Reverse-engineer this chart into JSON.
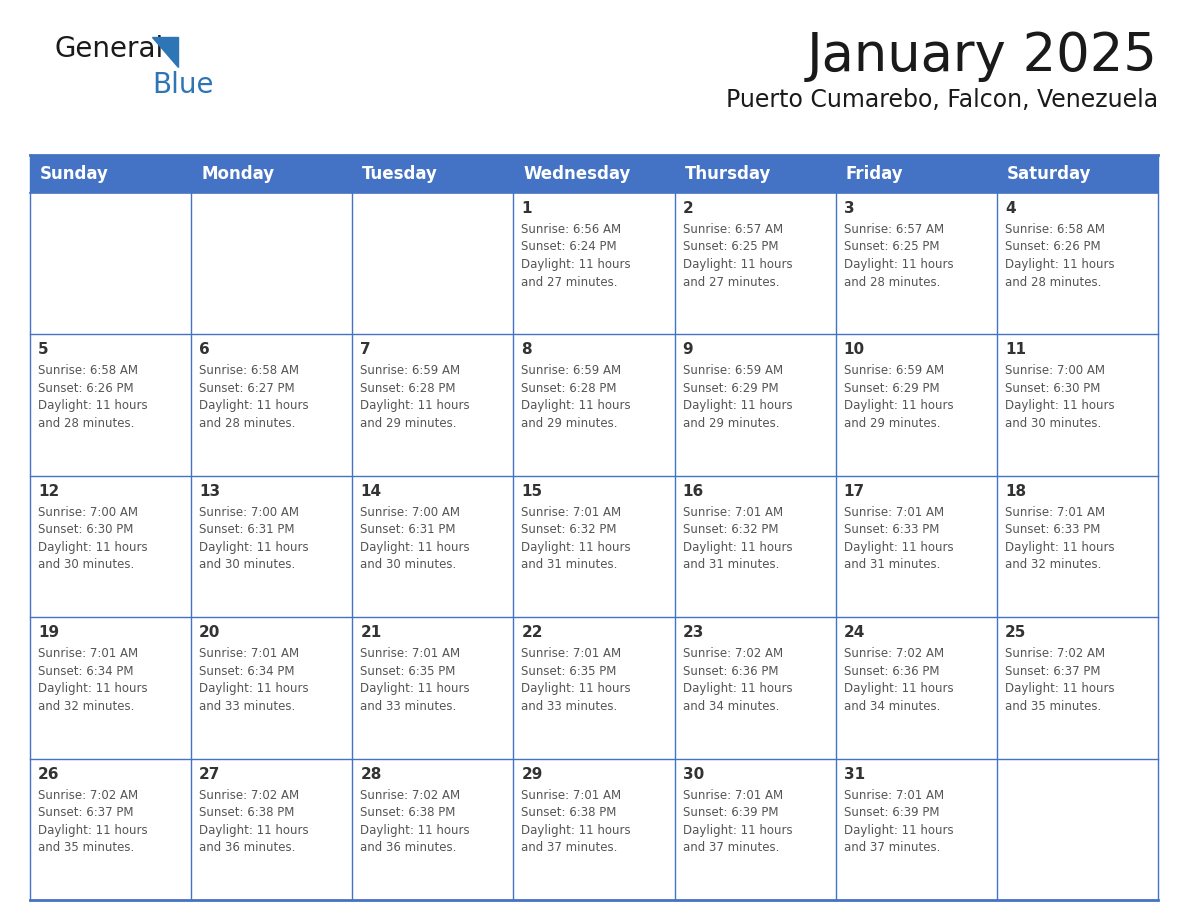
{
  "title": "January 2025",
  "subtitle": "Puerto Cumarebo, Falcon, Venezuela",
  "days_of_week": [
    "Sunday",
    "Monday",
    "Tuesday",
    "Wednesday",
    "Thursday",
    "Friday",
    "Saturday"
  ],
  "header_bg_color": "#4472C4",
  "header_text_color": "#FFFFFF",
  "cell_bg_color": "#FFFFFF",
  "grid_line_color": "#4472C4",
  "text_color": "#555555",
  "date_color": "#333333",
  "logo_general_color": "#1a1a1a",
  "logo_blue_color": "#2E75B6",
  "calendar_data": [
    {
      "day": 1,
      "col": 3,
      "row": 0,
      "sunrise": "6:56 AM",
      "sunset": "6:24 PM",
      "daylight_hours": 11,
      "daylight_minutes": 27
    },
    {
      "day": 2,
      "col": 4,
      "row": 0,
      "sunrise": "6:57 AM",
      "sunset": "6:25 PM",
      "daylight_hours": 11,
      "daylight_minutes": 27
    },
    {
      "day": 3,
      "col": 5,
      "row": 0,
      "sunrise": "6:57 AM",
      "sunset": "6:25 PM",
      "daylight_hours": 11,
      "daylight_minutes": 28
    },
    {
      "day": 4,
      "col": 6,
      "row": 0,
      "sunrise": "6:58 AM",
      "sunset": "6:26 PM",
      "daylight_hours": 11,
      "daylight_minutes": 28
    },
    {
      "day": 5,
      "col": 0,
      "row": 1,
      "sunrise": "6:58 AM",
      "sunset": "6:26 PM",
      "daylight_hours": 11,
      "daylight_minutes": 28
    },
    {
      "day": 6,
      "col": 1,
      "row": 1,
      "sunrise": "6:58 AM",
      "sunset": "6:27 PM",
      "daylight_hours": 11,
      "daylight_minutes": 28
    },
    {
      "day": 7,
      "col": 2,
      "row": 1,
      "sunrise": "6:59 AM",
      "sunset": "6:28 PM",
      "daylight_hours": 11,
      "daylight_minutes": 29
    },
    {
      "day": 8,
      "col": 3,
      "row": 1,
      "sunrise": "6:59 AM",
      "sunset": "6:28 PM",
      "daylight_hours": 11,
      "daylight_minutes": 29
    },
    {
      "day": 9,
      "col": 4,
      "row": 1,
      "sunrise": "6:59 AM",
      "sunset": "6:29 PM",
      "daylight_hours": 11,
      "daylight_minutes": 29
    },
    {
      "day": 10,
      "col": 5,
      "row": 1,
      "sunrise": "6:59 AM",
      "sunset": "6:29 PM",
      "daylight_hours": 11,
      "daylight_minutes": 29
    },
    {
      "day": 11,
      "col": 6,
      "row": 1,
      "sunrise": "7:00 AM",
      "sunset": "6:30 PM",
      "daylight_hours": 11,
      "daylight_minutes": 30
    },
    {
      "day": 12,
      "col": 0,
      "row": 2,
      "sunrise": "7:00 AM",
      "sunset": "6:30 PM",
      "daylight_hours": 11,
      "daylight_minutes": 30
    },
    {
      "day": 13,
      "col": 1,
      "row": 2,
      "sunrise": "7:00 AM",
      "sunset": "6:31 PM",
      "daylight_hours": 11,
      "daylight_minutes": 30
    },
    {
      "day": 14,
      "col": 2,
      "row": 2,
      "sunrise": "7:00 AM",
      "sunset": "6:31 PM",
      "daylight_hours": 11,
      "daylight_minutes": 30
    },
    {
      "day": 15,
      "col": 3,
      "row": 2,
      "sunrise": "7:01 AM",
      "sunset": "6:32 PM",
      "daylight_hours": 11,
      "daylight_minutes": 31
    },
    {
      "day": 16,
      "col": 4,
      "row": 2,
      "sunrise": "7:01 AM",
      "sunset": "6:32 PM",
      "daylight_hours": 11,
      "daylight_minutes": 31
    },
    {
      "day": 17,
      "col": 5,
      "row": 2,
      "sunrise": "7:01 AM",
      "sunset": "6:33 PM",
      "daylight_hours": 11,
      "daylight_minutes": 31
    },
    {
      "day": 18,
      "col": 6,
      "row": 2,
      "sunrise": "7:01 AM",
      "sunset": "6:33 PM",
      "daylight_hours": 11,
      "daylight_minutes": 32
    },
    {
      "day": 19,
      "col": 0,
      "row": 3,
      "sunrise": "7:01 AM",
      "sunset": "6:34 PM",
      "daylight_hours": 11,
      "daylight_minutes": 32
    },
    {
      "day": 20,
      "col": 1,
      "row": 3,
      "sunrise": "7:01 AM",
      "sunset": "6:34 PM",
      "daylight_hours": 11,
      "daylight_minutes": 33
    },
    {
      "day": 21,
      "col": 2,
      "row": 3,
      "sunrise": "7:01 AM",
      "sunset": "6:35 PM",
      "daylight_hours": 11,
      "daylight_minutes": 33
    },
    {
      "day": 22,
      "col": 3,
      "row": 3,
      "sunrise": "7:01 AM",
      "sunset": "6:35 PM",
      "daylight_hours": 11,
      "daylight_minutes": 33
    },
    {
      "day": 23,
      "col": 4,
      "row": 3,
      "sunrise": "7:02 AM",
      "sunset": "6:36 PM",
      "daylight_hours": 11,
      "daylight_minutes": 34
    },
    {
      "day": 24,
      "col": 5,
      "row": 3,
      "sunrise": "7:02 AM",
      "sunset": "6:36 PM",
      "daylight_hours": 11,
      "daylight_minutes": 34
    },
    {
      "day": 25,
      "col": 6,
      "row": 3,
      "sunrise": "7:02 AM",
      "sunset": "6:37 PM",
      "daylight_hours": 11,
      "daylight_minutes": 35
    },
    {
      "day": 26,
      "col": 0,
      "row": 4,
      "sunrise": "7:02 AM",
      "sunset": "6:37 PM",
      "daylight_hours": 11,
      "daylight_minutes": 35
    },
    {
      "day": 27,
      "col": 1,
      "row": 4,
      "sunrise": "7:02 AM",
      "sunset": "6:38 PM",
      "daylight_hours": 11,
      "daylight_minutes": 36
    },
    {
      "day": 28,
      "col": 2,
      "row": 4,
      "sunrise": "7:02 AM",
      "sunset": "6:38 PM",
      "daylight_hours": 11,
      "daylight_minutes": 36
    },
    {
      "day": 29,
      "col": 3,
      "row": 4,
      "sunrise": "7:01 AM",
      "sunset": "6:38 PM",
      "daylight_hours": 11,
      "daylight_minutes": 37
    },
    {
      "day": 30,
      "col": 4,
      "row": 4,
      "sunrise": "7:01 AM",
      "sunset": "6:39 PM",
      "daylight_hours": 11,
      "daylight_minutes": 37
    },
    {
      "day": 31,
      "col": 5,
      "row": 4,
      "sunrise": "7:01 AM",
      "sunset": "6:39 PM",
      "daylight_hours": 11,
      "daylight_minutes": 37
    }
  ],
  "num_rows": 5,
  "num_cols": 7,
  "figsize": [
    11.88,
    9.18
  ],
  "dpi": 100
}
